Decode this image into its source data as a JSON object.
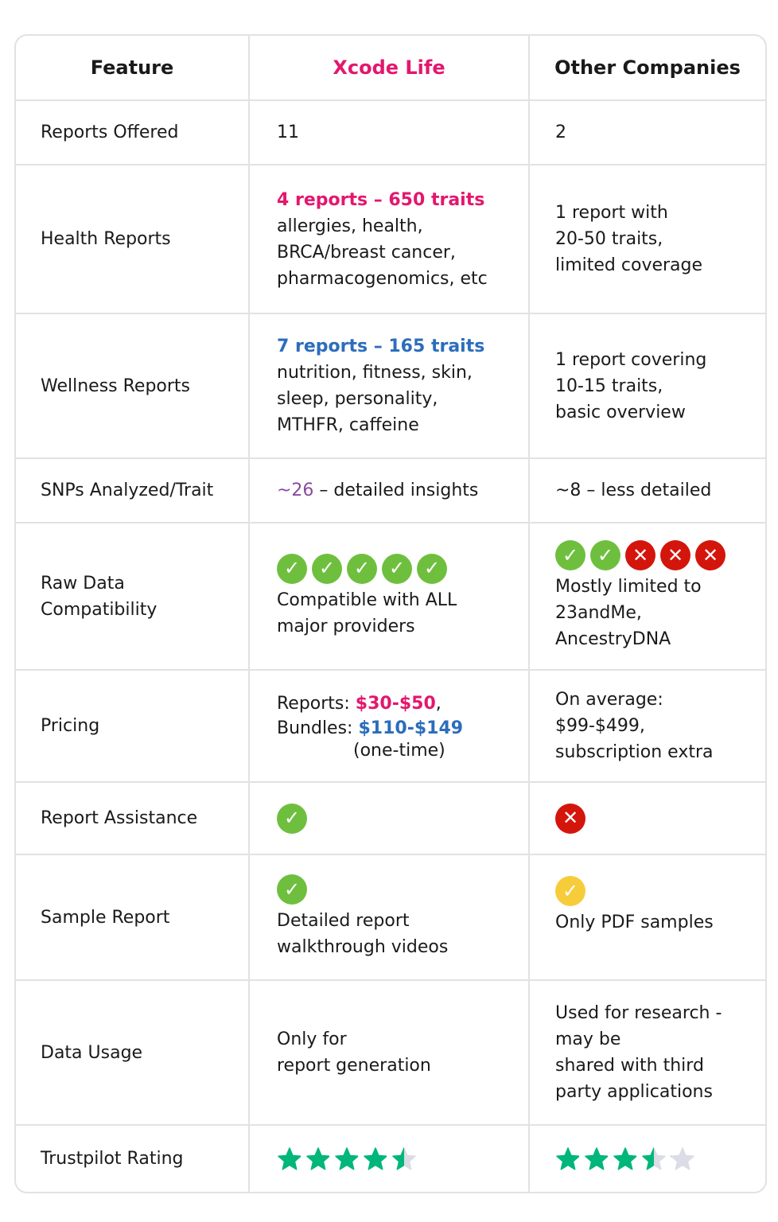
{
  "header": {
    "feature": "Feature",
    "xcode": "Xcode Life",
    "other": "Other Companies"
  },
  "colors": {
    "brand_pink": "#e3176d",
    "blue": "#2c6dbb",
    "purple": "#8a4aa3",
    "check": "#6fbf3f",
    "cross": "#d4150c",
    "star": "#00b67a",
    "star_empty": "#dcdce6"
  },
  "rows": [
    {
      "feature": "Reports Offered",
      "xcode": "11",
      "other": "2"
    },
    {
      "feature": "Health Reports",
      "xcode_highlight": "4 reports – 650 traits",
      "xcode_lines": [
        "allergies, health,",
        "BRCA/breast cancer,",
        "pharmacogenomics, etc"
      ],
      "other_lines": [
        "1 report with",
        "20-50 traits,",
        "limited coverage"
      ]
    },
    {
      "feature": "Wellness Reports",
      "xcode_highlight": "7 reports – 165 traits",
      "xcode_lines": [
        "nutrition, fitness, skin,",
        "sleep, personality,",
        "MTHFR, caffeine"
      ],
      "other_lines": [
        "1 report covering",
        "10-15 traits,",
        "basic overview"
      ]
    },
    {
      "feature": "SNPs Analyzed/Trait",
      "xcode_highlight": "~26",
      "xcode": " – detailed insights",
      "other": "~8 – less detailed"
    },
    {
      "feature_lines": [
        "Raw Data",
        "Compatibility"
      ],
      "xcode_icons": [
        "check",
        "check",
        "check",
        "check",
        "check"
      ],
      "xcode_lines": [
        "Compatible with ALL",
        "major providers"
      ],
      "other_icons": [
        "check",
        "check",
        "cross",
        "cross",
        "cross"
      ],
      "other_lines": [
        "Mostly limited to",
        "23andMe,",
        "AncestryDNA"
      ]
    },
    {
      "feature": "Pricing",
      "xcode_reports_label": "Reports: ",
      "xcode_reports_price": "$30-$50",
      "xcode_bundles_label": "Bundles: ",
      "xcode_bundles_price": "$110-$149",
      "xcode_note": "(one-time)",
      "comma": ",",
      "other_lines": [
        "On average:",
        "$99-$499,",
        "subscription extra"
      ]
    },
    {
      "feature": "Report Assistance",
      "xcode_icon": "check",
      "other_icon": "cross"
    },
    {
      "feature": "Sample Report",
      "xcode_icon": "check",
      "xcode_lines": [
        "Detailed report",
        "walkthrough videos"
      ],
      "other_icon": "partial-check",
      "other": "Only PDF samples"
    },
    {
      "feature": "Data Usage",
      "xcode_lines": [
        "Only for",
        "report generation"
      ],
      "other_lines": [
        "Used for research -",
        "may be",
        "shared with third",
        "party applications"
      ]
    },
    {
      "feature": "Trustpilot Rating",
      "xcode_rating": 4.5,
      "other_rating": 3.5,
      "rating_max": 5
    }
  ]
}
